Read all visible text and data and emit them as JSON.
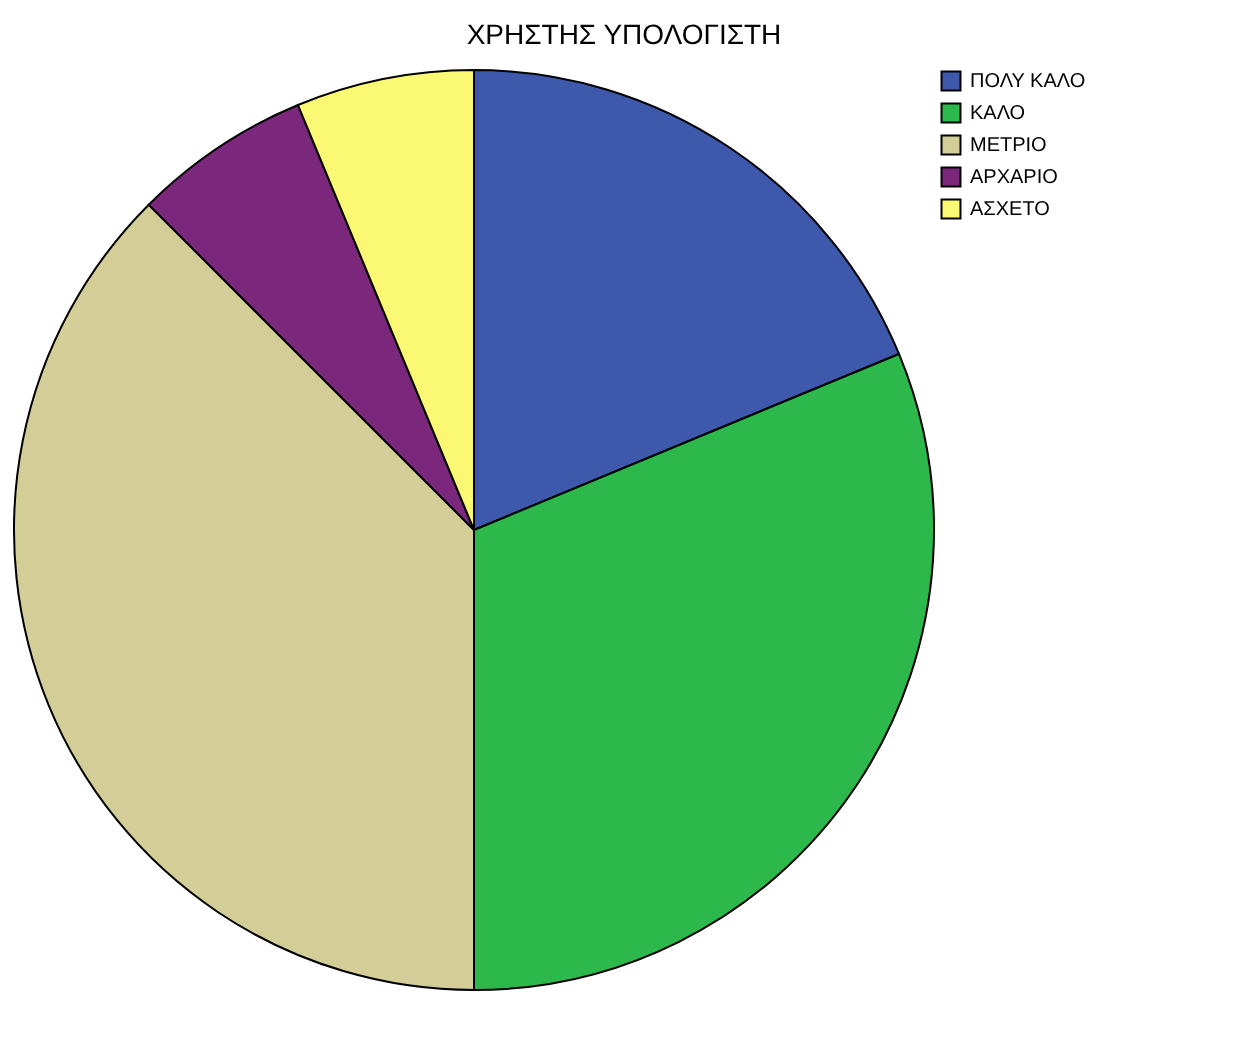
{
  "chart_data": {
    "type": "pie",
    "title": "ΧΡΗΣΤΗΣ ΥΠΟΛΟΓΙΣΤΗ",
    "categories": [
      "ΠΟΛΥ ΚΑΛΟ",
      "ΚΑΛΟ",
      "ΜΕΤΡΙΟ",
      "ΑΡΧΑΡΙΟ",
      "ΑΣΧΕΤΟ"
    ],
    "values": [
      18.75,
      31.25,
      37.5,
      6.25,
      6.25
    ],
    "colors": [
      "#3e58ac",
      "#2db84b",
      "#d3ce97",
      "#7b287c",
      "#fbf873"
    ],
    "legend": "top right"
  }
}
